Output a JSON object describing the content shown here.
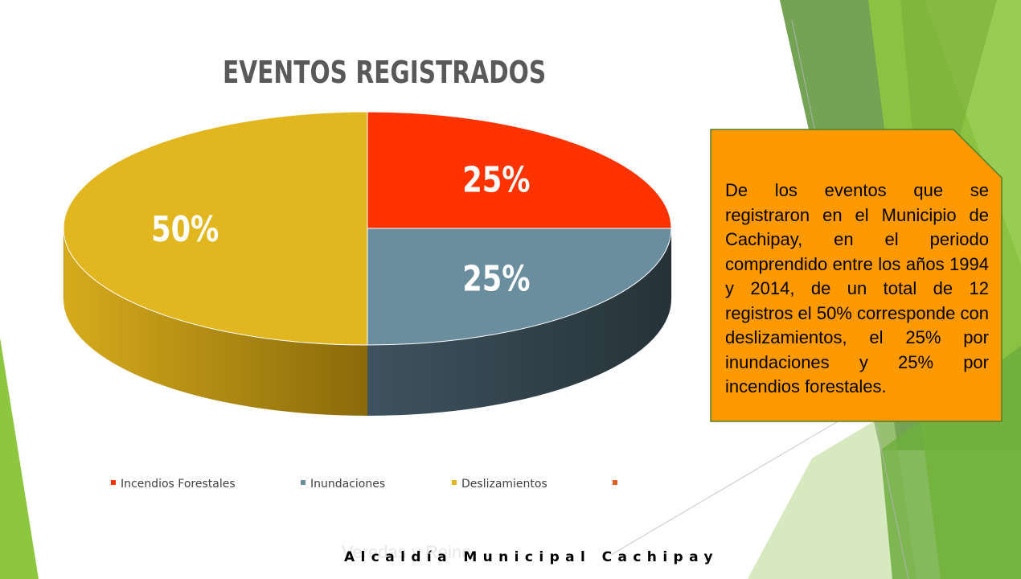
{
  "slide": {
    "title": "EVENTOS REGISTRADOS",
    "note_text": "De los eventos que se registraron en el Municipio de Cachipay, en el periodo comprendido entre los años 1994 y 2014, de un total de 12 registros el 50% corresponde con deslizamientos, el 25% por inundaciones y 25% por incendios forestales.",
    "footer": "Alcaldía Municipal Cachipay",
    "ghost_text": "Veredas y Reino"
  },
  "colors": {
    "accent_green": "#8DC63F",
    "note_fill": "#FF9900",
    "note_border": "#4F7F2A",
    "title": "#595959"
  },
  "chart_data": {
    "type": "pie",
    "title": "EVENTOS REGISTRADOS",
    "three_d": true,
    "legend_position": "bottom",
    "slices": [
      {
        "label": "Incendios Forestales",
        "value": 25,
        "data_label": "25%",
        "color": "#FF3300",
        "side_color": "#B32400"
      },
      {
        "label": "Inundaciones",
        "value": 25,
        "data_label": "25%",
        "color": "#6B8E9F",
        "side_color": "#2E3B43"
      },
      {
        "label": "Deslizamientos",
        "value": 50,
        "data_label": "50%",
        "color": "#E1B61E",
        "side_color": "#A3810F"
      },
      {
        "label": "",
        "value": 0,
        "data_label": "",
        "color": "#E06020",
        "side_color": "#E06020"
      }
    ]
  }
}
